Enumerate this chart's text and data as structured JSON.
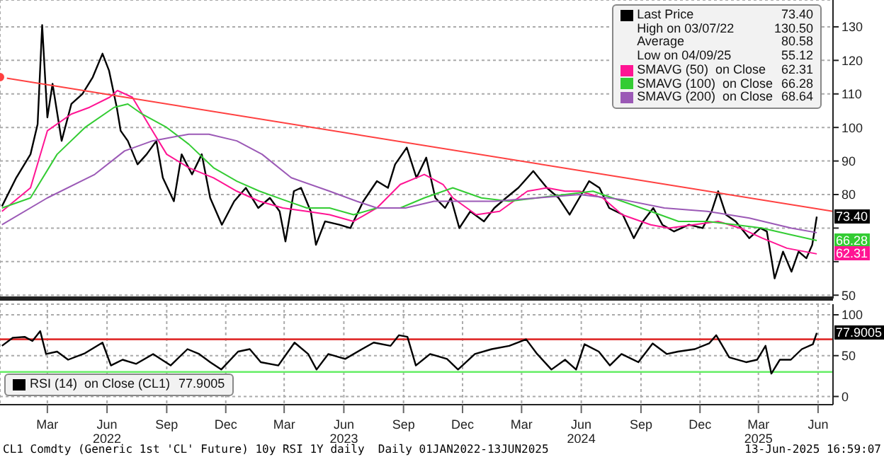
{
  "chart_data": [
    {
      "type": "line",
      "legend": "top right",
      "grid": true,
      "tick_labels": "y",
      "xlim": [
        "2022-01-01",
        "2025-07-08"
      ],
      "ylim": [
        49,
        138
      ],
      "yticks": [
        50,
        {
          "value": 60,
          "label": null
        },
        {
          "value": 70,
          "label": null
        },
        80,
        90,
        100,
        110,
        120,
        130
      ],
      "xticks": [
        {
          "value": "2022-03-15",
          "label": null
        },
        {
          "value": "2022-06-15",
          "label": null
        },
        {
          "value": "2022-09-15",
          "label": null
        },
        {
          "value": "2022-12-15",
          "label": null
        },
        {
          "value": "2023-03-15",
          "label": null
        },
        {
          "value": "2023-06-15",
          "label": null
        },
        {
          "value": "2023-09-15",
          "label": null
        },
        {
          "value": "2023-12-15",
          "label": null
        },
        {
          "value": "2024-03-15",
          "label": null
        },
        {
          "value": "2024-06-15",
          "label": null
        },
        {
          "value": "2024-09-15",
          "label": null
        },
        {
          "value": "2024-12-15",
          "label": null
        },
        {
          "value": "2025-03-15",
          "label": null
        },
        {
          "value": "2025-06-15",
          "label": null
        }
      ],
      "series": [
        {
          "name": "Last Price 73.40",
          "color": "#000000",
          "x": [
            "2022-01-04",
            "2022-01-26",
            "2022-02-17",
            "2022-02-28",
            "2022-03-07",
            "2022-03-15",
            "2022-03-23",
            "2022-04-06",
            "2022-04-21",
            "2022-05-08",
            "2022-05-24",
            "2022-06-08",
            "2022-06-18",
            "2022-06-30",
            "2022-07-06",
            "2022-07-17",
            "2022-08-01",
            "2022-08-15",
            "2022-08-30",
            "2022-09-09",
            "2022-09-26",
            "2022-10-08",
            "2022-10-24",
            "2022-11-08",
            "2022-11-21",
            "2022-12-09",
            "2022-12-28",
            "2023-01-15",
            "2023-02-03",
            "2023-02-21",
            "2023-03-08",
            "2023-03-17",
            "2023-03-30",
            "2023-04-10",
            "2023-04-25",
            "2023-05-03",
            "2023-05-17",
            "2023-06-08",
            "2023-06-25",
            "2023-07-15",
            "2023-08-05",
            "2023-08-22",
            "2023-09-02",
            "2023-09-20",
            "2023-10-05",
            "2023-10-20",
            "2023-11-03",
            "2023-11-18",
            "2023-11-27",
            "2023-12-10",
            "2023-12-27",
            "2024-01-17",
            "2024-02-02",
            "2024-02-20",
            "2024-03-10",
            "2024-04-02",
            "2024-04-23",
            "2024-05-11",
            "2024-05-28",
            "2024-06-12",
            "2024-06-27",
            "2024-07-13",
            "2024-07-28",
            "2024-08-18",
            "2024-09-04",
            "2024-09-18",
            "2024-10-04",
            "2024-10-18",
            "2024-11-05",
            "2024-11-28",
            "2024-12-19",
            "2025-01-02",
            "2025-01-12",
            "2025-01-24",
            "2025-02-08",
            "2025-03-01",
            "2025-03-18",
            "2025-03-28",
            "2025-04-04",
            "2025-04-09",
            "2025-04-22",
            "2025-05-05",
            "2025-05-16",
            "2025-05-28",
            "2025-06-06",
            "2025-06-13"
          ],
          "values": [
            76.5,
            85,
            92,
            101,
            130.5,
            103,
            113,
            96,
            107,
            110,
            115,
            122,
            117,
            106,
            99,
            96,
            89,
            92,
            96,
            85,
            78,
            92,
            86,
            92,
            79,
            71,
            78,
            82,
            76,
            79,
            75,
            66,
            81,
            82,
            75,
            65,
            72,
            71,
            70,
            78,
            84,
            82,
            89,
            94,
            85,
            91,
            79,
            76,
            79,
            70,
            75,
            72,
            76,
            79,
            82,
            87,
            82,
            79,
            74,
            79,
            84,
            82,
            76,
            74,
            67,
            72,
            76,
            71,
            69,
            71,
            70,
            75,
            81,
            74,
            72,
            67,
            70,
            69,
            61,
            55,
            63,
            57,
            63,
            61,
            65,
            73.4
          ]
        },
        {
          "name": "SMAVG (50)  on Close 62.31",
          "color": "#ff1493",
          "x": [
            "2022-01-04",
            "2022-02-17",
            "2022-03-15",
            "2022-04-21",
            "2022-05-19",
            "2022-06-19",
            "2022-07-01",
            "2022-07-24",
            "2022-08-24",
            "2022-09-15",
            "2022-10-19",
            "2022-11-26",
            "2023-01-01",
            "2023-02-05",
            "2023-03-13",
            "2023-04-19",
            "2023-05-24",
            "2023-06-30",
            "2023-08-05",
            "2023-09-10",
            "2023-10-17",
            "2023-11-15",
            "2023-11-30",
            "2024-01-05",
            "2024-02-10",
            "2024-03-24",
            "2024-04-23",
            "2024-05-21",
            "2024-06-12",
            "2024-07-18",
            "2024-08-17",
            "2024-09-30",
            "2024-10-28",
            "2024-12-05",
            "2025-01-12",
            "2025-02-15",
            "2025-03-21",
            "2025-04-28",
            "2025-06-13"
          ],
          "values": [
            75,
            82,
            99,
            104,
            106,
            109,
            111,
            109,
            99,
            92,
            88,
            85,
            81,
            78,
            76,
            75,
            74,
            72,
            76,
            83,
            86,
            83,
            79,
            74,
            75,
            81,
            82,
            81,
            81,
            79,
            74,
            71,
            70,
            71,
            72,
            70,
            67,
            64,
            62.31
          ]
        },
        {
          "name": "SMAVG (100)  on Close 66.28",
          "color": "#33cc33",
          "x": [
            "2022-01-04",
            "2022-02-17",
            "2022-03-30",
            "2022-05-12",
            "2022-06-26",
            "2022-07-17",
            "2022-08-08",
            "2022-09-15",
            "2022-10-19",
            "2022-11-26",
            "2023-01-01",
            "2023-02-05",
            "2023-03-13",
            "2023-04-19",
            "2023-05-24",
            "2023-06-30",
            "2023-08-05",
            "2023-09-10",
            "2023-10-17",
            "2023-11-30",
            "2024-01-13",
            "2024-02-25",
            "2024-04-08",
            "2024-05-21",
            "2024-07-03",
            "2024-08-17",
            "2024-09-30",
            "2024-11-12",
            "2024-12-26",
            "2025-02-08",
            "2025-03-21",
            "2025-05-05",
            "2025-06-13"
          ],
          "values": [
            76,
            79,
            92,
            100,
            106,
            107,
            104,
            100,
            95,
            88,
            84,
            81,
            78.5,
            76,
            76,
            74,
            76,
            76,
            79,
            82,
            79,
            78,
            79,
            80,
            81,
            78,
            75,
            72,
            72,
            71,
            70,
            68,
            66.28
          ]
        },
        {
          "name": "SMAVG (200)  on Close 68.64",
          "color": "#9b59b6",
          "x": [
            "2022-01-04",
            "2022-03-15",
            "2022-05-27",
            "2022-07-12",
            "2022-08-24",
            "2022-10-19",
            "2022-11-19",
            "2023-01-01",
            "2023-02-09",
            "2023-03-26",
            "2023-05-24",
            "2023-07-05",
            "2023-08-05",
            "2023-09-18",
            "2023-11-01",
            "2023-11-30",
            "2024-02-02",
            "2024-04-08",
            "2024-06-12",
            "2024-08-17",
            "2024-10-21",
            "2024-12-26",
            "2025-03-01",
            "2025-05-05",
            "2025-06-13"
          ],
          "values": [
            71,
            79,
            86,
            93,
            96,
            98,
            98,
            96,
            92,
            85,
            81,
            78,
            76,
            76,
            78,
            78,
            78,
            79,
            80,
            78.5,
            76,
            75,
            73,
            70,
            68.64
          ]
        },
        {
          "color": "#ff4040",
          "x": [
            "2022-01-01",
            "2025-07-08"
          ],
          "values": [
            115,
            75
          ]
        }
      ],
      "annotations": [
        "High on 03/07/22 130.50",
        "Average 80.58",
        "Low on 04/09/25 55.12",
        {
          "text": "73.40",
          "x": "2025-06-13",
          "y": 73.4
        },
        {
          "text": "66.28",
          "x": "2025-06-13",
          "y": 66.28
        },
        {
          "text": "62.31",
          "x": "2025-06-13",
          "y": 62.31
        }
      ]
    },
    {
      "type": "line",
      "legend": "bottom left",
      "grid": true,
      "xlim": [
        "2022-01-01",
        "2025-07-08"
      ],
      "ylim": [
        -10,
        113
      ],
      "yticks": [
        0,
        50,
        100
      ],
      "xticks": [
        {
          "value": "2022-03-15",
          "label": "Mar"
        },
        {
          "value": "2022-06-15",
          "label": "Jun\n2022"
        },
        {
          "value": "2022-09-15",
          "label": "Sep"
        },
        {
          "value": "2022-12-15",
          "label": "Dec"
        },
        {
          "value": "2023-03-15",
          "label": "Mar"
        },
        {
          "value": "2023-06-15",
          "label": "Jun\n2023"
        },
        {
          "value": "2023-09-15",
          "label": "Sep"
        },
        {
          "value": "2023-12-15",
          "label": "Dec"
        },
        {
          "value": "2024-03-15",
          "label": "Mar"
        },
        {
          "value": "2024-06-15",
          "label": "Jun\n2024"
        },
        {
          "value": "2024-09-15",
          "label": "Sep"
        },
        {
          "value": "2024-12-15",
          "label": "Dec"
        },
        {
          "value": "2025-03-15",
          "label": "Mar\n2025"
        },
        {
          "value": "2025-06-15",
          "label": "Jun"
        }
      ],
      "ref_lines": [
        {
          "axis": "y",
          "value": 70,
          "color": "#e03030"
        },
        {
          "axis": "y",
          "value": 30,
          "color": "#66ee66"
        }
      ],
      "series": [
        {
          "name": "RSI (14)  on Close (CL1) 77.9005",
          "color": "#000000",
          "x": [
            "2022-01-04",
            "2022-01-21",
            "2022-02-08",
            "2022-02-20",
            "2022-03-04",
            "2022-03-13",
            "2022-03-30",
            "2022-04-16",
            "2022-05-12",
            "2022-06-08",
            "2022-06-21",
            "2022-07-09",
            "2022-07-30",
            "2022-08-25",
            "2022-09-21",
            "2022-10-17",
            "2022-11-04",
            "2022-11-21",
            "2022-12-08",
            "2023-01-03",
            "2023-01-21",
            "2023-02-07",
            "2023-03-06",
            "2023-03-31",
            "2023-04-21",
            "2023-05-04",
            "2023-05-22",
            "2023-06-17",
            "2023-07-13",
            "2023-07-31",
            "2023-08-26",
            "2023-09-08",
            "2023-09-21",
            "2023-10-04",
            "2023-10-26",
            "2023-11-21",
            "2023-12-08",
            "2024-01-03",
            "2024-01-29",
            "2024-02-25",
            "2024-03-22",
            "2024-04-08",
            "2024-04-30",
            "2024-05-21",
            "2024-06-07",
            "2024-06-20",
            "2024-07-12",
            "2024-07-29",
            "2024-08-16",
            "2024-09-11",
            "2024-10-03",
            "2024-10-25",
            "2024-11-11",
            "2024-12-07",
            "2024-12-29",
            "2025-01-09",
            "2025-01-29",
            "2025-02-24",
            "2025-03-13",
            "2025-03-26",
            "2025-04-04",
            "2025-04-17",
            "2025-05-04",
            "2025-05-21",
            "2025-06-07",
            "2025-06-13"
          ],
          "values": [
            62,
            72,
            73,
            68,
            80,
            52,
            55,
            45,
            53,
            66,
            38,
            45,
            40,
            52,
            38,
            58,
            52,
            42,
            33,
            55,
            58,
            42,
            38,
            66,
            52,
            33,
            52,
            46,
            58,
            66,
            62,
            75,
            73,
            38,
            52,
            46,
            33,
            52,
            58,
            62,
            70,
            52,
            33,
            45,
            33,
            64,
            55,
            38,
            52,
            42,
            65,
            52,
            55,
            58,
            65,
            75,
            48,
            42,
            45,
            62,
            28,
            45,
            45,
            58,
            64,
            77.9005
          ]
        }
      ],
      "annotations": [
        "CL1 Comdty (Generic 1st 'CL' Future) 10y RSI 1Y daily  Daily 01JAN2022-13JUN2025",
        "13-Jun-2025 16:59:07",
        {
          "text": "77.9005",
          "x": "2025-06-13",
          "y": 77.9005
        }
      ]
    }
  ]
}
